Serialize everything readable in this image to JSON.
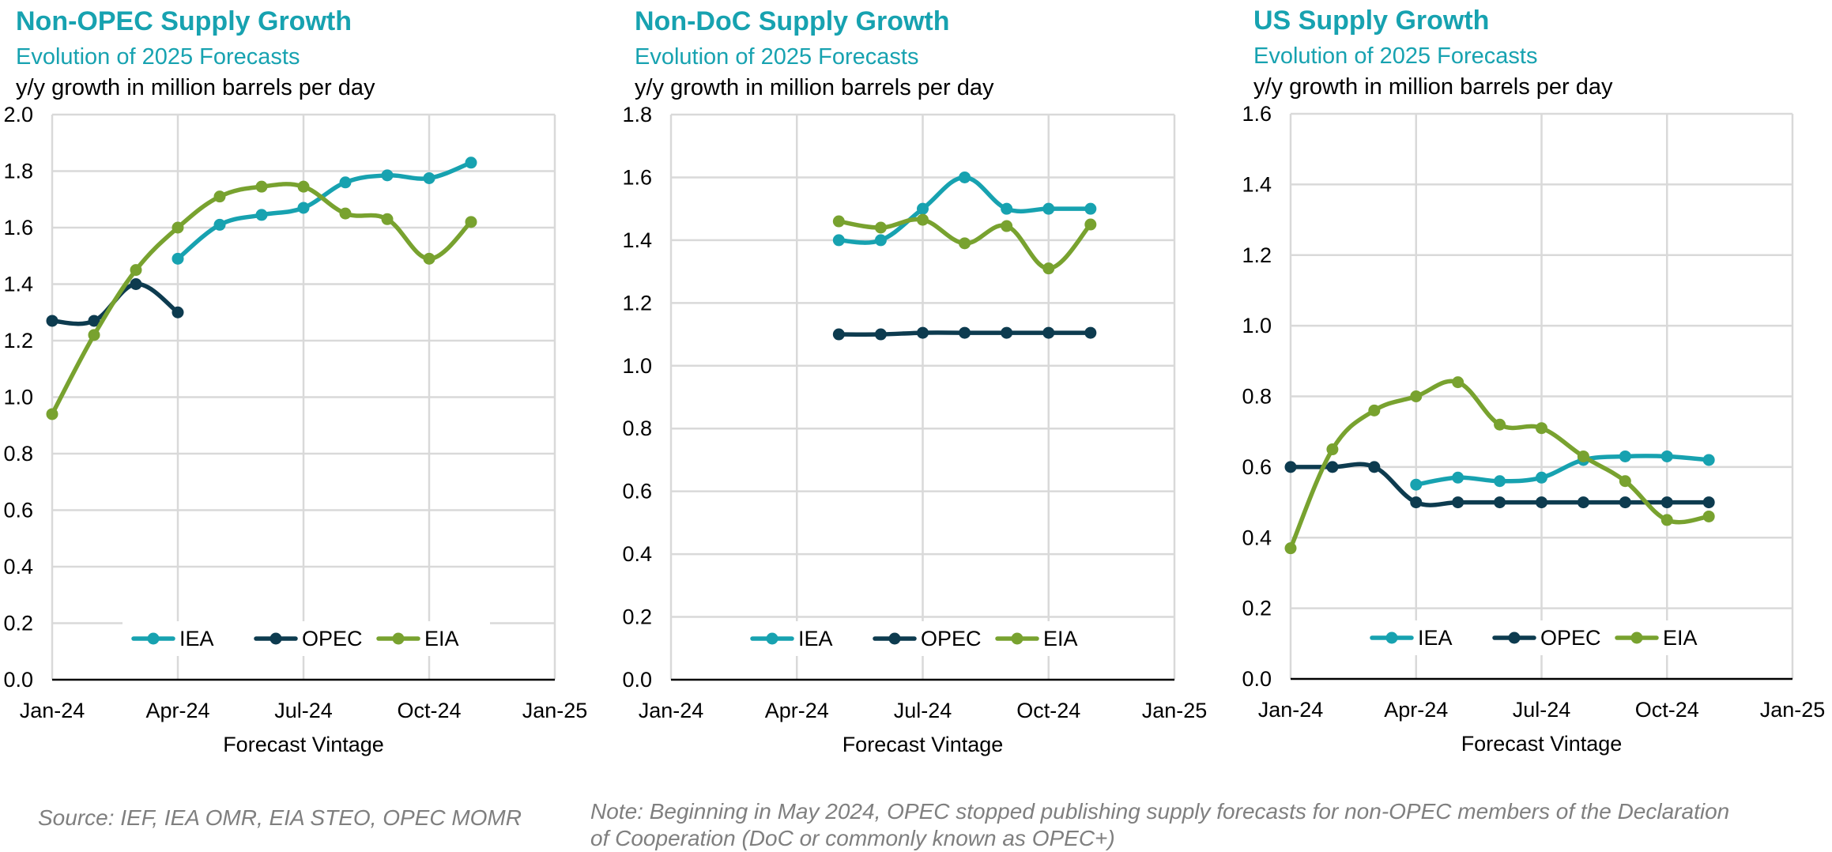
{
  "colors": {
    "IEA": "#17a2b0",
    "OPEC": "#0d3b4f",
    "EIA": "#78a22f",
    "title": "#17a2b0",
    "grid": "#d9d9d9",
    "axis": "#000000",
    "footnote": "#7f7f7f"
  },
  "chart_data": [
    {
      "type": "line",
      "title": "Non-OPEC Supply Growth",
      "subtitle": "Evolution of 2025 Forecasts",
      "ylabel": "y/y growth in million barrels per day",
      "xlabel": "Forecast Vintage",
      "ylim": [
        0,
        2.0
      ],
      "yticks": [
        0,
        0.2,
        0.4,
        0.6,
        0.8,
        1.0,
        1.2,
        1.4,
        1.6,
        1.8,
        2.0
      ],
      "ytick_labels": [
        "0.0",
        "0.2",
        "0.4",
        "0.6",
        "0.8",
        "1.0",
        "1.2",
        "1.4",
        "1.6",
        "1.8",
        "2.0"
      ],
      "xlim": [
        0,
        12
      ],
      "xticks": [
        0,
        3,
        6,
        9,
        12
      ],
      "xtick_labels": [
        "Jan-24",
        "Apr-24",
        "Jul-24",
        "Oct-24",
        "Jan-25"
      ],
      "grid": true,
      "legend": "bottom",
      "series": [
        {
          "name": "IEA",
          "x": [
            3,
            4,
            5,
            6,
            7,
            8,
            9,
            10
          ],
          "values": [
            1.49,
            1.61,
            1.645,
            1.67,
            1.76,
            1.785,
            1.775,
            1.83
          ]
        },
        {
          "name": "OPEC",
          "x": [
            0,
            1,
            2,
            3
          ],
          "values": [
            1.27,
            1.27,
            1.4,
            1.3
          ]
        },
        {
          "name": "EIA",
          "x": [
            0,
            1,
            2,
            3,
            4,
            5,
            6,
            7,
            8,
            9,
            10
          ],
          "values": [
            0.94,
            1.22,
            1.45,
            1.6,
            1.71,
            1.745,
            1.745,
            1.65,
            1.63,
            1.49,
            1.62
          ]
        }
      ]
    },
    {
      "type": "line",
      "title": "Non-DoC Supply Growth",
      "subtitle": "Evolution of 2025 Forecasts",
      "ylabel": "y/y growth in million barrels per day",
      "xlabel": "Forecast Vintage",
      "ylim": [
        0,
        1.8
      ],
      "yticks": [
        0,
        0.2,
        0.4,
        0.6,
        0.8,
        1.0,
        1.2,
        1.4,
        1.6,
        1.8
      ],
      "ytick_labels": [
        "0.0",
        "0.2",
        "0.4",
        "0.6",
        "0.8",
        "1.0",
        "1.2",
        "1.4",
        "1.6",
        "1.8"
      ],
      "xlim": [
        0,
        12
      ],
      "xticks": [
        0,
        3,
        6,
        9,
        12
      ],
      "xtick_labels": [
        "Jan-24",
        "Apr-24",
        "Jul-24",
        "Oct-24",
        "Jan-25"
      ],
      "grid": true,
      "legend": "bottom",
      "series": [
        {
          "name": "IEA",
          "x": [
            4,
            5,
            6,
            7,
            8,
            9,
            10
          ],
          "values": [
            1.4,
            1.4,
            1.5,
            1.6,
            1.5,
            1.5,
            1.5
          ]
        },
        {
          "name": "OPEC",
          "x": [
            4,
            5,
            6,
            7,
            8,
            9,
            10
          ],
          "values": [
            1.1,
            1.1,
            1.105,
            1.105,
            1.105,
            1.105,
            1.105
          ]
        },
        {
          "name": "EIA",
          "x": [
            4,
            5,
            6,
            7,
            8,
            9,
            10
          ],
          "values": [
            1.46,
            1.44,
            1.465,
            1.39,
            1.445,
            1.31,
            1.45
          ]
        }
      ]
    },
    {
      "type": "line",
      "title": "US Supply Growth",
      "subtitle": "Evolution of 2025 Forecasts",
      "ylabel": "y/y growth in million barrels per day",
      "xlabel": "Forecast Vintage",
      "ylim": [
        0,
        1.6
      ],
      "yticks": [
        0,
        0.2,
        0.4,
        0.6,
        0.8,
        1.0,
        1.2,
        1.4,
        1.6
      ],
      "ytick_labels": [
        "0.0",
        "0.2",
        "0.4",
        "0.6",
        "0.8",
        "1.0",
        "1.2",
        "1.4",
        "1.6"
      ],
      "xlim": [
        0,
        12
      ],
      "xticks": [
        0,
        3,
        6,
        9,
        12
      ],
      "xtick_labels": [
        "Jan-24",
        "Apr-24",
        "Jul-24",
        "Oct-24",
        "Jan-25"
      ],
      "grid": true,
      "legend": "bottom",
      "series": [
        {
          "name": "IEA",
          "x": [
            3,
            4,
            5,
            6,
            7,
            8,
            9,
            10
          ],
          "values": [
            0.55,
            0.57,
            0.56,
            0.57,
            0.62,
            0.63,
            0.63,
            0.62
          ]
        },
        {
          "name": "OPEC",
          "x": [
            0,
            1,
            2,
            3,
            4,
            5,
            6,
            7,
            8,
            9,
            10
          ],
          "values": [
            0.6,
            0.6,
            0.6,
            0.5,
            0.5,
            0.5,
            0.5,
            0.5,
            0.5,
            0.5,
            0.5
          ]
        },
        {
          "name": "EIA",
          "x": [
            0,
            1,
            2,
            3,
            4,
            5,
            6,
            7,
            8,
            9,
            10
          ],
          "values": [
            0.37,
            0.65,
            0.76,
            0.8,
            0.84,
            0.72,
            0.71,
            0.63,
            0.56,
            0.45,
            0.46
          ]
        }
      ]
    }
  ],
  "footnotes": {
    "source": "Source: IEF, IEA OMR, EIA STEO, OPEC MOMR",
    "note_line1": "Note: Beginning in May 2024, OPEC stopped publishing supply forecasts for non-OPEC members of the Declaration",
    "note_line2": "of Cooperation (DoC or commonly known as OPEC+)"
  }
}
